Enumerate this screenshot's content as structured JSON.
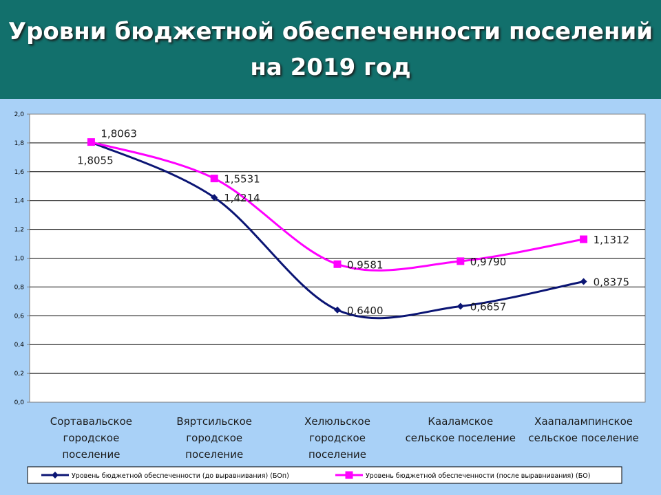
{
  "slide": {
    "title_line1": "Уровни бюджетной обеспеченности поселений",
    "title_line2": "на 2019 год"
  },
  "colors": {
    "header": "#12706c",
    "slide_background": "#a9d1f7",
    "plot_background": "#ffffff",
    "series_before": "#0b1574",
    "series_after": "#ff00ff"
  },
  "chart_data": {
    "type": "line",
    "categories": [
      [
        "Сортавальское",
        "городское",
        "поселение"
      ],
      [
        "Вяртсильское",
        "городское",
        "поселение"
      ],
      [
        "Хелюльское",
        "городское",
        "поселение"
      ],
      [
        "Кааламское",
        "сельское поселение"
      ],
      [
        "Хаапалампинское",
        "сельское поселение"
      ]
    ],
    "series": [
      {
        "name": "Уровень бюджетной обеспеченности (до выравнивания) (БОп)",
        "values": [
          1.8055,
          1.4214,
          0.64,
          0.6657,
          0.8375
        ],
        "labels": [
          "1,8055",
          "1,4214",
          "0,6400",
          "0,6657",
          "0,8375"
        ],
        "color": "#0b1574",
        "marker": "diamond"
      },
      {
        "name": "Уровень бюджетной обеспеченности (после выравнивания) (БО)",
        "values": [
          1.8063,
          1.5531,
          0.9581,
          0.979,
          1.1312
        ],
        "labels": [
          "1,8063",
          "1,5531",
          "0,9581",
          "0,9790",
          "1,1312"
        ],
        "color": "#ff00ff",
        "marker": "square"
      }
    ],
    "ylim": [
      0,
      2
    ],
    "yticks": [
      "0,0",
      "0,2",
      "0,4",
      "0,6",
      "0,8",
      "1,0",
      "1,2",
      "1,4",
      "1,6",
      "1,8",
      "2,0"
    ],
    "grid": true,
    "smooth": true,
    "legend": "bottom",
    "xlabel": "",
    "ylabel": ""
  }
}
